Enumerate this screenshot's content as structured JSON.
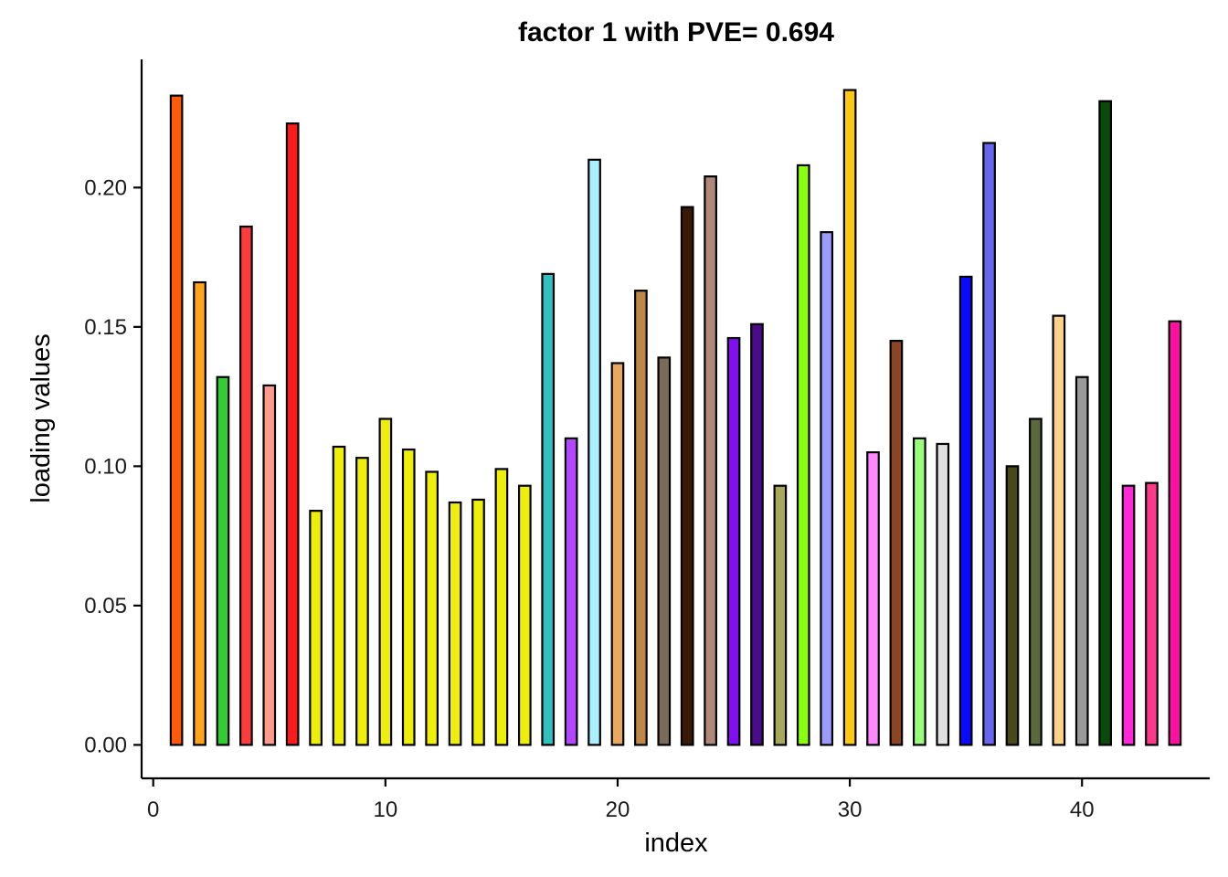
{
  "chart_data": {
    "type": "bar",
    "title": "factor 1 with PVE= 0.694",
    "xlabel": "index",
    "ylabel": "loading values",
    "xlim": [
      -0.5,
      45.5
    ],
    "ylim": [
      -0.012,
      0.246
    ],
    "xticks": [
      0,
      10,
      20,
      30,
      40
    ],
    "xtick_labels": [
      "0",
      "10",
      "20",
      "30",
      "40"
    ],
    "yticks": [
      0,
      0.05,
      0.1,
      0.15,
      0.2
    ],
    "ytick_labels": [
      "0.00",
      "0.05",
      "0.10",
      "0.15",
      "0.20"
    ],
    "grid": false,
    "legend": "none",
    "x": [
      1,
      2,
      3,
      4,
      5,
      6,
      7,
      8,
      9,
      10,
      11,
      12,
      13,
      14,
      15,
      16,
      17,
      18,
      19,
      20,
      21,
      22,
      23,
      24,
      25,
      26,
      27,
      28,
      29,
      30,
      31,
      32,
      33,
      34,
      35,
      36,
      37,
      38,
      39,
      40,
      41,
      42,
      43,
      44
    ],
    "values": [
      0.233,
      0.166,
      0.132,
      0.186,
      0.129,
      0.223,
      0.084,
      0.107,
      0.103,
      0.117,
      0.106,
      0.098,
      0.087,
      0.088,
      0.099,
      0.093,
      0.169,
      0.11,
      0.21,
      0.137,
      0.163,
      0.139,
      0.193,
      0.204,
      0.146,
      0.151,
      0.093,
      0.208,
      0.184,
      0.235,
      0.105,
      0.145,
      0.11,
      0.108,
      0.168,
      0.216,
      0.1,
      0.117,
      0.154,
      0.132,
      0.231,
      0.093,
      0.094,
      0.152
    ],
    "colors": [
      "#ff5a0a",
      "#ffa41c",
      "#32cd32",
      "#ff3c3c",
      "#ff9a8a",
      "#ff1a1a",
      "#eeee0a",
      "#eeee0a",
      "#eeee0a",
      "#eeee0a",
      "#eeee0a",
      "#eeee0a",
      "#eeee0a",
      "#eeee0a",
      "#eeee0a",
      "#eeee0a",
      "#30c0c0",
      "#b347ff",
      "#a8efff",
      "#e8a860",
      "#c08848",
      "#7a6a58",
      "#3a1a05",
      "#b08878",
      "#8010f0",
      "#4b0c8c",
      "#a8a858",
      "#88ff10",
      "#9a9aff",
      "#ffc810",
      "#ff88ff",
      "#8b4522",
      "#98ff78",
      "#e0e0e0",
      "#0a0aff",
      "#6666ee",
      "#484818",
      "#5a6a3a",
      "#ffd088",
      "#9a9a9a",
      "#0a4a0a",
      "#ff28d8",
      "#ff3a8a",
      "#ff10a0"
    ]
  }
}
